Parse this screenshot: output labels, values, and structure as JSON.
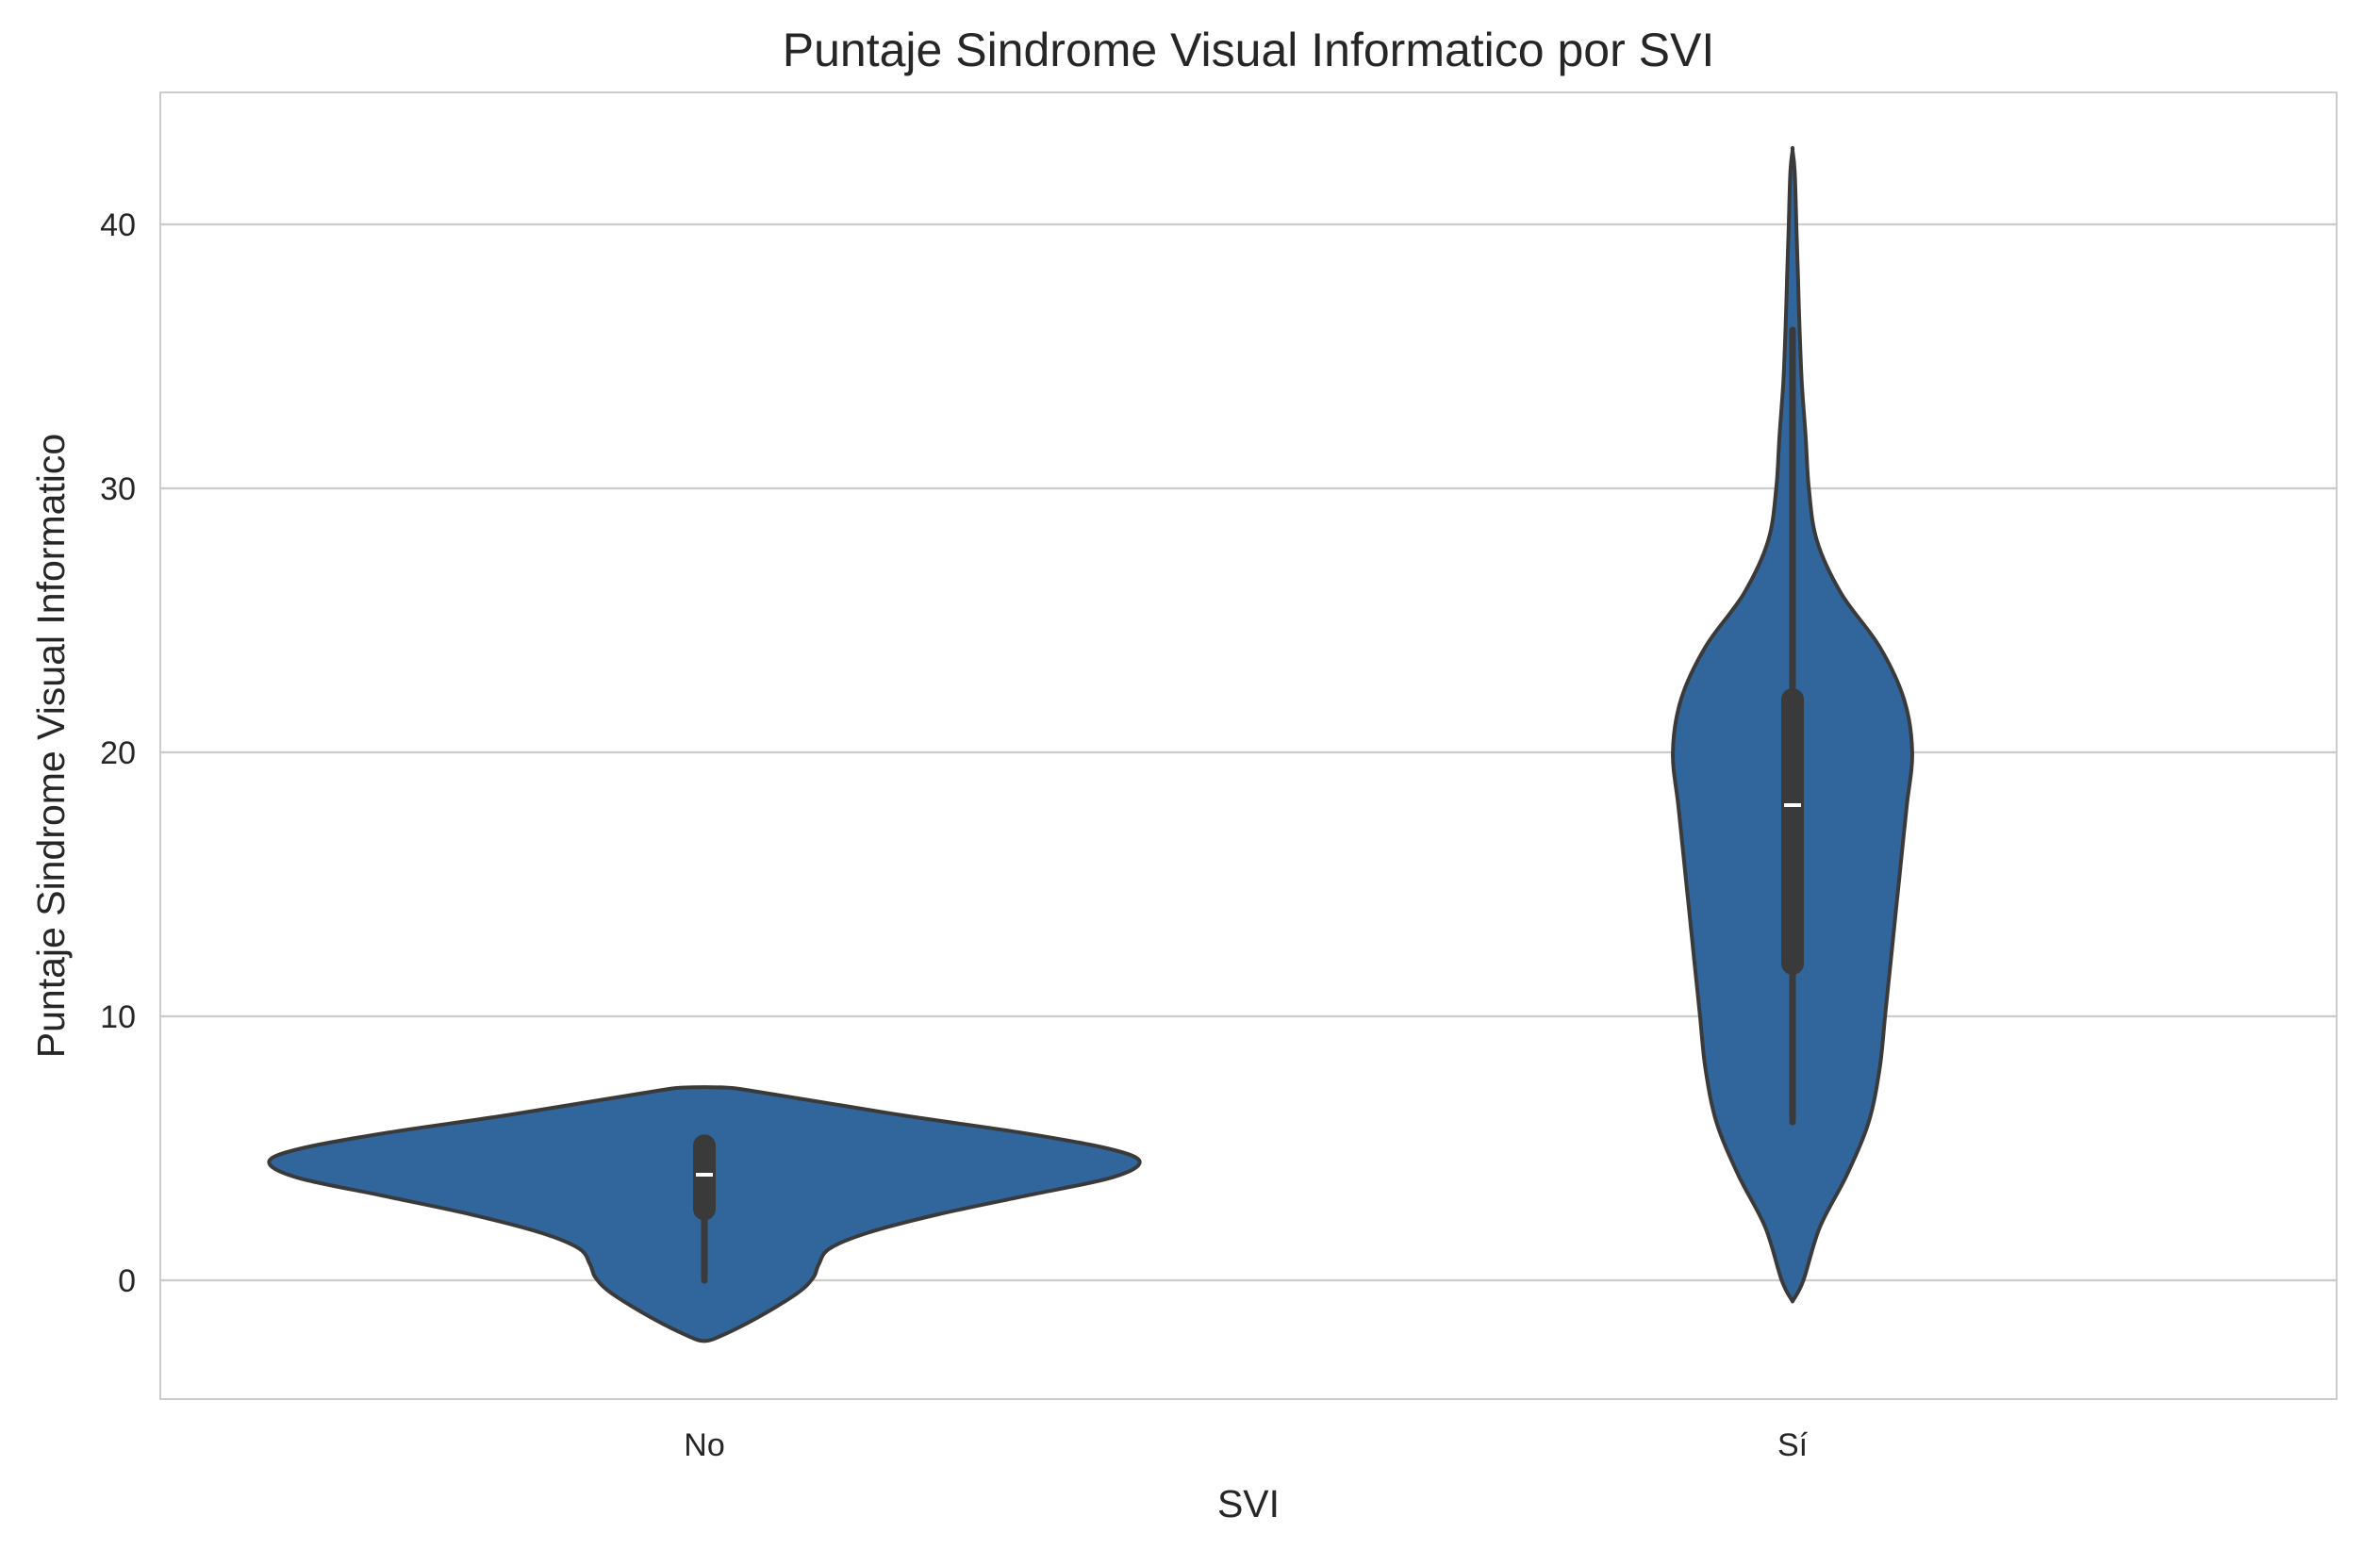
{
  "chart_data": {
    "type": "violin",
    "title": "Puntaje Sindrome Visual Informatico por SVI",
    "xlabel": "SVI",
    "ylabel": "Puntaje Sindrome Visual Informatico",
    "categories": [
      "No",
      "Sí"
    ],
    "ylim": [
      -4.5,
      45
    ],
    "yticks": [
      0,
      10,
      20,
      30,
      40
    ],
    "grid": "horizontal",
    "colors": {
      "violin_fill": "#31669d",
      "outline": "#3a3a3a",
      "median": "#ffffff",
      "grid": "#cccccc",
      "spine": "#cccccc"
    },
    "violins": [
      {
        "category": "No",
        "density_profile": [
          {
            "y": -2.3,
            "w": 0.0
          },
          {
            "y": -2.2,
            "w": 0.02
          },
          {
            "y": -1.5,
            "w": 0.09
          },
          {
            "y": -0.5,
            "w": 0.17
          },
          {
            "y": 0.1,
            "w": 0.2
          },
          {
            "y": 0.6,
            "w": 0.21
          },
          {
            "y": 1.2,
            "w": 0.23
          },
          {
            "y": 1.8,
            "w": 0.3
          },
          {
            "y": 2.5,
            "w": 0.43
          },
          {
            "y": 3.2,
            "w": 0.59
          },
          {
            "y": 3.9,
            "w": 0.75
          },
          {
            "y": 4.5,
            "w": 0.8
          },
          {
            "y": 5.0,
            "w": 0.74
          },
          {
            "y": 5.6,
            "w": 0.58
          },
          {
            "y": 6.2,
            "w": 0.38
          },
          {
            "y": 6.8,
            "w": 0.2
          },
          {
            "y": 7.2,
            "w": 0.08
          },
          {
            "y": 7.3,
            "w": 0.04
          }
        ],
        "whisker": [
          0,
          5.2
        ],
        "iqr": [
          2.7,
          5.1
        ],
        "median": 4
      },
      {
        "category": "Sí",
        "density_profile": [
          {
            "y": -0.8,
            "w": 0.0
          },
          {
            "y": 0,
            "w": 0.02
          },
          {
            "y": 2,
            "w": 0.05
          },
          {
            "y": 4,
            "w": 0.1
          },
          {
            "y": 6,
            "w": 0.14
          },
          {
            "y": 8,
            "w": 0.16
          },
          {
            "y": 10,
            "w": 0.17
          },
          {
            "y": 12,
            "w": 0.18
          },
          {
            "y": 14,
            "w": 0.19
          },
          {
            "y": 16,
            "w": 0.2
          },
          {
            "y": 18,
            "w": 0.21
          },
          {
            "y": 20,
            "w": 0.22
          },
          {
            "y": 22,
            "w": 0.205
          },
          {
            "y": 24,
            "w": 0.16
          },
          {
            "y": 26,
            "w": 0.09
          },
          {
            "y": 28,
            "w": 0.045
          },
          {
            "y": 30,
            "w": 0.03
          },
          {
            "y": 32,
            "w": 0.024
          },
          {
            "y": 34,
            "w": 0.017
          },
          {
            "y": 36,
            "w": 0.013
          },
          {
            "y": 38,
            "w": 0.01
          },
          {
            "y": 40,
            "w": 0.007
          },
          {
            "y": 42,
            "w": 0.004
          },
          {
            "y": 42.8,
            "w": 0.0
          }
        ],
        "whisker": [
          6,
          36
        ],
        "iqr": [
          12,
          22
        ],
        "median": 18
      }
    ]
  }
}
